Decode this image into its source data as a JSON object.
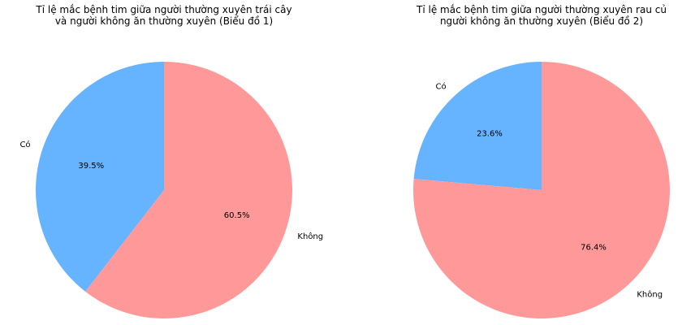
{
  "chart_data": [
    {
      "type": "pie",
      "title_lines": [
        "Tỉ lệ mắc bệnh tim giữa người thường xuyên trái cây",
        "và người không ăn thường xuyên (Biểu đồ 1)"
      ],
      "categories": [
        "Có",
        "Không"
      ],
      "values": [
        39.5,
        60.5
      ],
      "percent_labels": [
        "39.5%",
        "60.5%"
      ],
      "colors": [
        "#66b3ff",
        "#ff9999"
      ],
      "start_angle_deg": 90,
      "direction": "counterclockwise"
    },
    {
      "type": "pie",
      "title_lines": [
        "Tỉ lệ mắc bệnh tim giữa người thường xuyên rau củ",
        "người không ăn thường xuyên (Biểu đồ 2)"
      ],
      "categories": [
        "Có",
        "Không"
      ],
      "values": [
        23.6,
        76.4
      ],
      "percent_labels": [
        "23.6%",
        "76.4%"
      ],
      "colors": [
        "#66b3ff",
        "#ff9999"
      ],
      "start_angle_deg": 90,
      "direction": "counterclockwise"
    }
  ]
}
